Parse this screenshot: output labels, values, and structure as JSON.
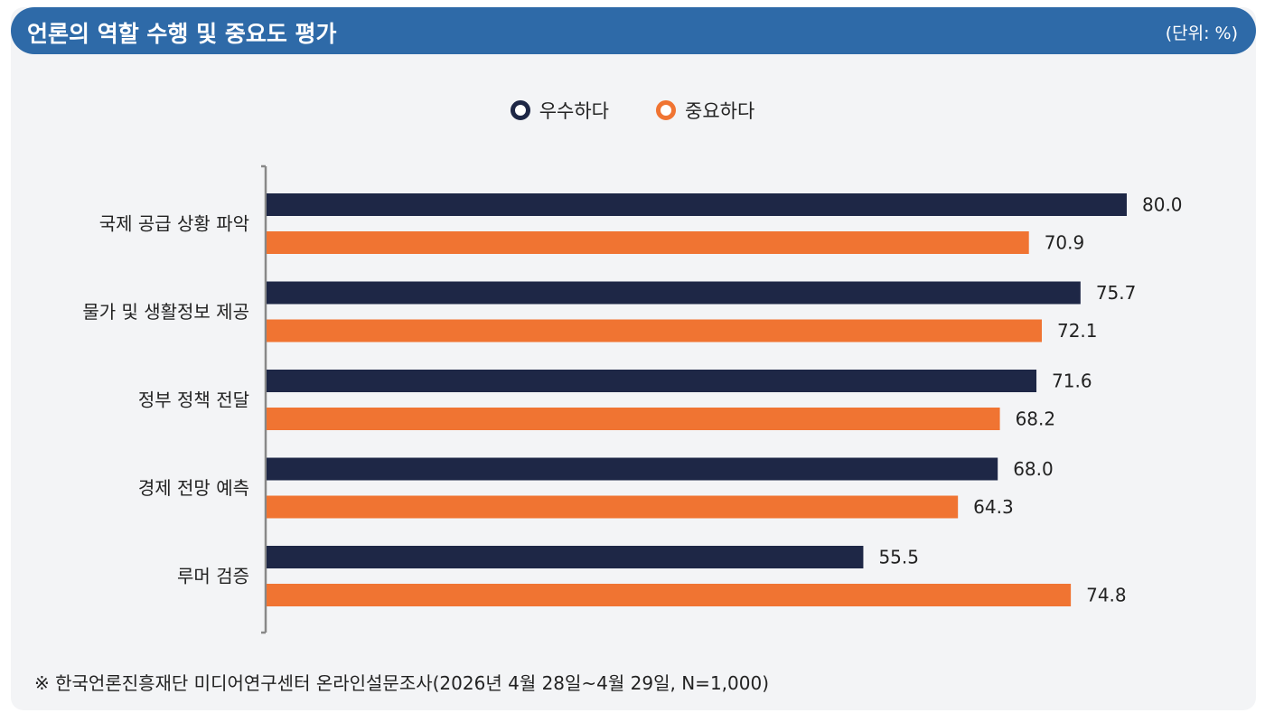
{
  "header": {
    "title": "언론의 역할 수행 및 중요도 평가",
    "unit": "(단위: %)"
  },
  "colors": {
    "header_bg": "#2e6aa8",
    "series_1": "#1e2746",
    "series_2": "#f07432"
  },
  "legend": [
    {
      "label": "우수하다",
      "color": "#1e2746"
    },
    {
      "label": "중요하다",
      "color": "#f07432"
    }
  ],
  "chart_data": {
    "type": "bar",
    "orientation": "horizontal",
    "title": "언론의 역할 수행 및 중요도 평가",
    "unit": "%",
    "categories": [
      "국제 공급 상황 파악",
      "물가 및 생활정보 제공",
      "정부 정책 전달",
      "경제 전망 예측",
      "루머 검증"
    ],
    "series": [
      {
        "name": "우수하다",
        "values": [
          80.0,
          75.7,
          71.6,
          68.0,
          55.5
        ],
        "color": "#1e2746"
      },
      {
        "name": "중요하다",
        "values": [
          70.9,
          72.1,
          68.2,
          64.3,
          74.8
        ],
        "color": "#f07432"
      }
    ],
    "xlim": [
      0,
      80
    ],
    "grid": false,
    "legend_position": "top-center",
    "value_labels": [
      "80.0",
      "70.9",
      "75.7",
      "72.1",
      "71.6",
      "68.2",
      "68.0",
      "64.3",
      "55.5",
      "74.8"
    ]
  },
  "footnote": "※ 한국언론진흥재단 미디어연구센터 온라인설문조사(2026년 4월 28일~4월 29일, N=1,000)"
}
